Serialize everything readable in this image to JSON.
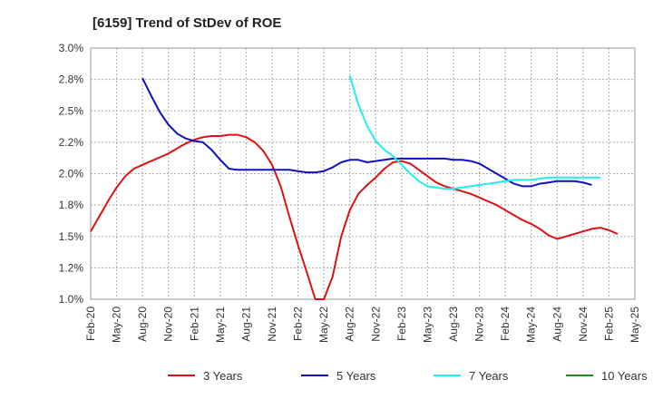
{
  "chart_data": {
    "type": "line",
    "title": "[6159]  Trend of StDev of ROE",
    "xlabel": "",
    "ylabel": "",
    "ylim": [
      1.0,
      3.0
    ],
    "yticks": [
      "1.0%",
      "1.2%",
      "1.5%",
      "1.8%",
      "2.0%",
      "2.2%",
      "2.5%",
      "2.8%",
      "3.0%"
    ],
    "xticks": [
      "Feb-20",
      "May-20",
      "Aug-20",
      "Nov-20",
      "Feb-21",
      "May-21",
      "Aug-21",
      "Nov-21",
      "Feb-22",
      "May-22",
      "Aug-22",
      "Nov-22",
      "Feb-23",
      "May-23",
      "Aug-23",
      "Nov-23",
      "Feb-24",
      "May-24",
      "Aug-24",
      "Nov-24",
      "Feb-25",
      "May-25"
    ],
    "grid": true,
    "legend_position": "bottom",
    "x_start": "Feb-20",
    "x_step_months": 1,
    "series": [
      {
        "name": "3 Years",
        "color": "#dd1111",
        "start_index": 0,
        "values": [
          1.54,
          1.66,
          1.78,
          1.89,
          1.98,
          2.04,
          2.07,
          2.1,
          2.13,
          2.16,
          2.2,
          2.24,
          2.27,
          2.29,
          2.3,
          2.3,
          2.31,
          2.31,
          2.29,
          2.25,
          2.18,
          2.07,
          1.9,
          1.66,
          1.43,
          1.22,
          1.0,
          1.0,
          1.18,
          1.5,
          1.71,
          1.84,
          1.91,
          1.97,
          2.04,
          2.09,
          2.1,
          2.08,
          2.03,
          1.98,
          1.93,
          1.9,
          1.88,
          1.86,
          1.84,
          1.81,
          1.78,
          1.75,
          1.71,
          1.67,
          1.63,
          1.6,
          1.56,
          1.51,
          1.48,
          1.5,
          1.52,
          1.54,
          1.56,
          1.57,
          1.55,
          1.52
        ]
      },
      {
        "name": "5 Years",
        "color": "#1111bb",
        "start_index": 6,
        "values": [
          2.76,
          2.62,
          2.49,
          2.39,
          2.32,
          2.28,
          2.26,
          2.25,
          2.19,
          2.11,
          2.04,
          2.03,
          2.03,
          2.03,
          2.03,
          2.03,
          2.03,
          2.03,
          2.02,
          2.01,
          2.01,
          2.02,
          2.05,
          2.09,
          2.11,
          2.11,
          2.09,
          2.1,
          2.11,
          2.12,
          2.12,
          2.12,
          2.12,
          2.12,
          2.12,
          2.12,
          2.11,
          2.11,
          2.1,
          2.08,
          2.04,
          2.0,
          1.96,
          1.92,
          1.9,
          1.9,
          1.92,
          1.93,
          1.94,
          1.94,
          1.94,
          1.93,
          1.91
        ]
      },
      {
        "name": "7 Years",
        "color": "#22eeee",
        "start_index": 30,
        "values": [
          2.78,
          2.55,
          2.38,
          2.26,
          2.19,
          2.14,
          2.07,
          2.0,
          1.94,
          1.9,
          1.89,
          1.88,
          1.88,
          1.89,
          1.9,
          1.91,
          1.92,
          1.93,
          1.94,
          1.95,
          1.95,
          1.95,
          1.96,
          1.97,
          1.97,
          1.97,
          1.97,
          1.97,
          1.97,
          1.97
        ]
      },
      {
        "name": "10 Years",
        "color": "#228822",
        "start_index": 0,
        "values": []
      }
    ]
  }
}
